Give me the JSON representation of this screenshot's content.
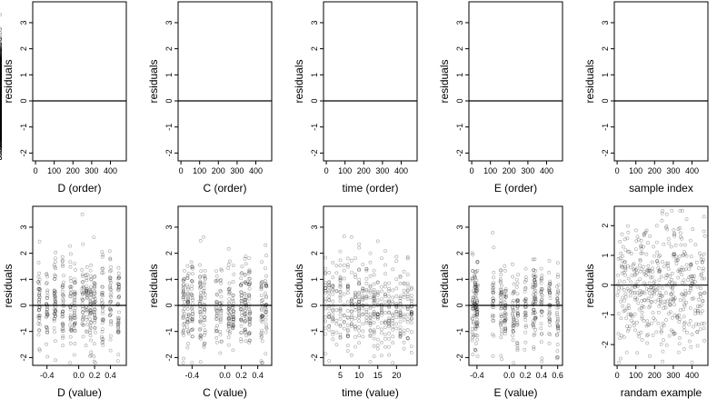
{
  "figure": {
    "background": "#ffffff",
    "point_color": "#000000",
    "point_opacity": 0.35
  },
  "chart_data": [
    {
      "type": "scatter",
      "xlabel": "D (order)",
      "ylabel": "residuals",
      "xlim": [
        -15,
        485
      ],
      "ylim": [
        -2.3,
        3.8
      ],
      "xticks": [
        0,
        100,
        200,
        300,
        400
      ],
      "xtick_labels": [
        "0",
        "100",
        "200",
        "300",
        "400"
      ],
      "yticks": [
        -2,
        -1,
        0,
        1,
        2,
        3
      ],
      "ytick_labels": [
        "-2",
        "-1",
        "0",
        "1",
        "2",
        "3"
      ],
      "hline": 0,
      "x": [],
      "y": []
    },
    {
      "type": "scatter",
      "xlabel": "C (order)",
      "ylabel": "residuals",
      "xlim": [
        -15,
        485
      ],
      "ylim": [
        -2.3,
        3.8
      ],
      "xticks": [
        0,
        100,
        200,
        300,
        400
      ],
      "xtick_labels": [
        "0",
        "100",
        "200",
        "300",
        "400"
      ],
      "yticks": [
        -2,
        -1,
        0,
        1,
        2,
        3
      ],
      "ytick_labels": [
        "-2",
        "-1",
        "0",
        "1",
        "2",
        "3"
      ],
      "hline": 0,
      "x": [],
      "y": []
    },
    {
      "type": "scatter",
      "xlabel": "time (order)",
      "ylabel": "residuals",
      "xlim": [
        -15,
        485
      ],
      "ylim": [
        -2.3,
        3.8
      ],
      "xticks": [
        0,
        100,
        200,
        300,
        400
      ],
      "xtick_labels": [
        "0",
        "100",
        "200",
        "300",
        "400"
      ],
      "yticks": [
        -2,
        -1,
        0,
        1,
        2,
        3
      ],
      "ytick_labels": [
        "-2",
        "-1",
        "0",
        "1",
        "2",
        "3"
      ],
      "hline": 0,
      "x": [],
      "y": []
    },
    {
      "type": "scatter",
      "xlabel": "E (order)",
      "ylabel": "residuals",
      "xlim": [
        -15,
        485
      ],
      "ylim": [
        -2.3,
        3.8
      ],
      "xticks": [
        0,
        100,
        200,
        300,
        400
      ],
      "xtick_labels": [
        "0",
        "100",
        "200",
        "300",
        "400"
      ],
      "yticks": [
        -2,
        -1,
        0,
        1,
        2,
        3
      ],
      "ytick_labels": [
        "-2",
        "-1",
        "0",
        "1",
        "2",
        "3"
      ],
      "hline": 0,
      "x": [],
      "y": []
    },
    {
      "type": "scatter",
      "xlabel": "sample index",
      "ylabel": "residuals",
      "xlim": [
        -15,
        485
      ],
      "ylim": [
        -2.3,
        3.8
      ],
      "xticks": [
        0,
        100,
        200,
        300,
        400
      ],
      "xtick_labels": [
        "0",
        "100",
        "200",
        "300",
        "400"
      ],
      "yticks": [
        -2,
        -1,
        0,
        1,
        2,
        3
      ],
      "ytick_labels": [
        "-2",
        "-1",
        "0",
        "1",
        "2",
        "3"
      ],
      "hline": 0,
      "x": [],
      "y": []
    },
    {
      "type": "scatter",
      "xlabel": "D (value)",
      "ylabel": "residuals",
      "xlim": [
        -0.58,
        0.6
      ],
      "ylim": [
        -2.3,
        3.8
      ],
      "xticks": [
        -0.4,
        0.0,
        0.2,
        0.4
      ],
      "xtick_labels": [
        "-0.4",
        "0.0",
        "0.2",
        "0.4"
      ],
      "yticks": [
        -2,
        -1,
        0,
        1,
        2,
        3
      ],
      "ytick_labels": [
        "-2",
        "-1",
        "0",
        "1",
        "2",
        "3"
      ],
      "hline": 0,
      "x": [],
      "y": []
    },
    {
      "type": "scatter",
      "xlabel": "C (value)",
      "ylabel": "residuals",
      "xlim": [
        -0.57,
        0.57
      ],
      "ylim": [
        -2.3,
        3.8
      ],
      "xticks": [
        -0.4,
        0.0,
        0.2,
        0.4
      ],
      "xtick_labels": [
        "-0.4",
        "0.0",
        "0.2",
        "0.4"
      ],
      "yticks": [
        -2,
        -1,
        0,
        1,
        2,
        3
      ],
      "ytick_labels": [
        "-2",
        "-1",
        "0",
        "1",
        "2",
        "3"
      ],
      "hline": 0,
      "x": [],
      "y": []
    },
    {
      "type": "scatter",
      "xlabel": "time (value)",
      "ylabel": "residuals",
      "xlim": [
        0.5,
        25.5
      ],
      "ylim": [
        -2.3,
        3.8
      ],
      "xticks": [
        5,
        10,
        15,
        20
      ],
      "xtick_labels": [
        "5",
        "10",
        "15",
        "20"
      ],
      "yticks": [
        -2,
        -1,
        0,
        1,
        2,
        3
      ],
      "ytick_labels": [
        "-2",
        "-1",
        "0",
        "1",
        "2",
        "3"
      ],
      "hline": 0,
      "x": [],
      "y": []
    },
    {
      "type": "scatter",
      "xlabel": "E (value)",
      "ylabel": "residuals",
      "xlim": [
        -0.5,
        0.66
      ],
      "ylim": [
        -2.3,
        3.8
      ],
      "xticks": [
        -0.4,
        0.0,
        0.2,
        0.4,
        0.6
      ],
      "xtick_labels": [
        "-0.4",
        "0.0",
        "0.2",
        "0.4",
        "0.6"
      ],
      "yticks": [
        -2,
        -1,
        0,
        1,
        2,
        3
      ],
      "ytick_labels": [
        "-2",
        "-1",
        "0",
        "1",
        "2",
        "3"
      ],
      "hline": 0,
      "x": [],
      "y": []
    },
    {
      "type": "scatter",
      "xlabel": "randam example",
      "ylabel": "residuals",
      "xlim": [
        -15,
        485
      ],
      "ylim": [
        -2.7,
        2.65
      ],
      "xticks": [
        0,
        100,
        200,
        300,
        400
      ],
      "xtick_labels": [
        "0",
        "100",
        "200",
        "300",
        "400"
      ],
      "yticks": [
        -2,
        -1,
        0,
        1,
        2
      ],
      "ytick_labels": [
        "-2",
        "-1",
        "0",
        "1",
        "2"
      ],
      "hline": 0,
      "x": [],
      "y": []
    }
  ]
}
